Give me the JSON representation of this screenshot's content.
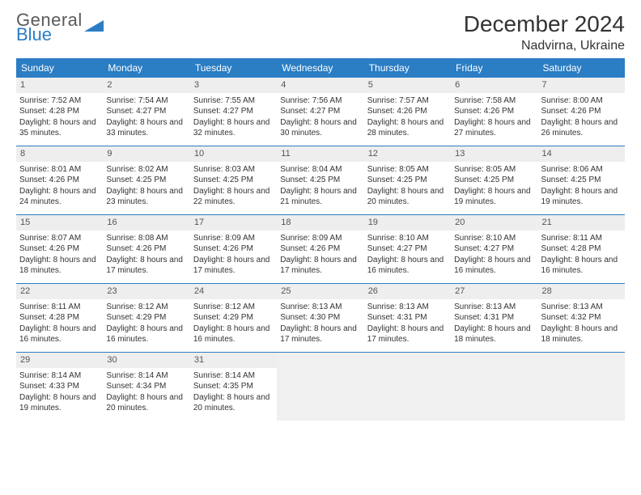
{
  "logo": {
    "word1": "General",
    "word2": "Blue"
  },
  "title": "December 2024",
  "location": "Nadvirna, Ukraine",
  "colors": {
    "header_bg": "#2b7dc4",
    "header_text": "#ffffff",
    "daynum_bg": "#eeeeee",
    "border": "#2b7dc4",
    "body_text": "#333333",
    "empty_bg": "#f0f0f0"
  },
  "dayNames": [
    "Sunday",
    "Monday",
    "Tuesday",
    "Wednesday",
    "Thursday",
    "Friday",
    "Saturday"
  ],
  "weeks": [
    [
      {
        "n": "1",
        "sunrise": "7:52 AM",
        "sunset": "4:28 PM",
        "day": "8 hours and 35 minutes."
      },
      {
        "n": "2",
        "sunrise": "7:54 AM",
        "sunset": "4:27 PM",
        "day": "8 hours and 33 minutes."
      },
      {
        "n": "3",
        "sunrise": "7:55 AM",
        "sunset": "4:27 PM",
        "day": "8 hours and 32 minutes."
      },
      {
        "n": "4",
        "sunrise": "7:56 AM",
        "sunset": "4:27 PM",
        "day": "8 hours and 30 minutes."
      },
      {
        "n": "5",
        "sunrise": "7:57 AM",
        "sunset": "4:26 PM",
        "day": "8 hours and 28 minutes."
      },
      {
        "n": "6",
        "sunrise": "7:58 AM",
        "sunset": "4:26 PM",
        "day": "8 hours and 27 minutes."
      },
      {
        "n": "7",
        "sunrise": "8:00 AM",
        "sunset": "4:26 PM",
        "day": "8 hours and 26 minutes."
      }
    ],
    [
      {
        "n": "8",
        "sunrise": "8:01 AM",
        "sunset": "4:26 PM",
        "day": "8 hours and 24 minutes."
      },
      {
        "n": "9",
        "sunrise": "8:02 AM",
        "sunset": "4:25 PM",
        "day": "8 hours and 23 minutes."
      },
      {
        "n": "10",
        "sunrise": "8:03 AM",
        "sunset": "4:25 PM",
        "day": "8 hours and 22 minutes."
      },
      {
        "n": "11",
        "sunrise": "8:04 AM",
        "sunset": "4:25 PM",
        "day": "8 hours and 21 minutes."
      },
      {
        "n": "12",
        "sunrise": "8:05 AM",
        "sunset": "4:25 PM",
        "day": "8 hours and 20 minutes."
      },
      {
        "n": "13",
        "sunrise": "8:05 AM",
        "sunset": "4:25 PM",
        "day": "8 hours and 19 minutes."
      },
      {
        "n": "14",
        "sunrise": "8:06 AM",
        "sunset": "4:25 PM",
        "day": "8 hours and 19 minutes."
      }
    ],
    [
      {
        "n": "15",
        "sunrise": "8:07 AM",
        "sunset": "4:26 PM",
        "day": "8 hours and 18 minutes."
      },
      {
        "n": "16",
        "sunrise": "8:08 AM",
        "sunset": "4:26 PM",
        "day": "8 hours and 17 minutes."
      },
      {
        "n": "17",
        "sunrise": "8:09 AM",
        "sunset": "4:26 PM",
        "day": "8 hours and 17 minutes."
      },
      {
        "n": "18",
        "sunrise": "8:09 AM",
        "sunset": "4:26 PM",
        "day": "8 hours and 17 minutes."
      },
      {
        "n": "19",
        "sunrise": "8:10 AM",
        "sunset": "4:27 PM",
        "day": "8 hours and 16 minutes."
      },
      {
        "n": "20",
        "sunrise": "8:10 AM",
        "sunset": "4:27 PM",
        "day": "8 hours and 16 minutes."
      },
      {
        "n": "21",
        "sunrise": "8:11 AM",
        "sunset": "4:28 PM",
        "day": "8 hours and 16 minutes."
      }
    ],
    [
      {
        "n": "22",
        "sunrise": "8:11 AM",
        "sunset": "4:28 PM",
        "day": "8 hours and 16 minutes."
      },
      {
        "n": "23",
        "sunrise": "8:12 AM",
        "sunset": "4:29 PM",
        "day": "8 hours and 16 minutes."
      },
      {
        "n": "24",
        "sunrise": "8:12 AM",
        "sunset": "4:29 PM",
        "day": "8 hours and 16 minutes."
      },
      {
        "n": "25",
        "sunrise": "8:13 AM",
        "sunset": "4:30 PM",
        "day": "8 hours and 17 minutes."
      },
      {
        "n": "26",
        "sunrise": "8:13 AM",
        "sunset": "4:31 PM",
        "day": "8 hours and 17 minutes."
      },
      {
        "n": "27",
        "sunrise": "8:13 AM",
        "sunset": "4:31 PM",
        "day": "8 hours and 18 minutes."
      },
      {
        "n": "28",
        "sunrise": "8:13 AM",
        "sunset": "4:32 PM",
        "day": "8 hours and 18 minutes."
      }
    ],
    [
      {
        "n": "29",
        "sunrise": "8:14 AM",
        "sunset": "4:33 PM",
        "day": "8 hours and 19 minutes."
      },
      {
        "n": "30",
        "sunrise": "8:14 AM",
        "sunset": "4:34 PM",
        "day": "8 hours and 20 minutes."
      },
      {
        "n": "31",
        "sunrise": "8:14 AM",
        "sunset": "4:35 PM",
        "day": "8 hours and 20 minutes."
      },
      null,
      null,
      null,
      null
    ]
  ],
  "labels": {
    "sunrise": "Sunrise:",
    "sunset": "Sunset:",
    "daylight": "Daylight:"
  }
}
